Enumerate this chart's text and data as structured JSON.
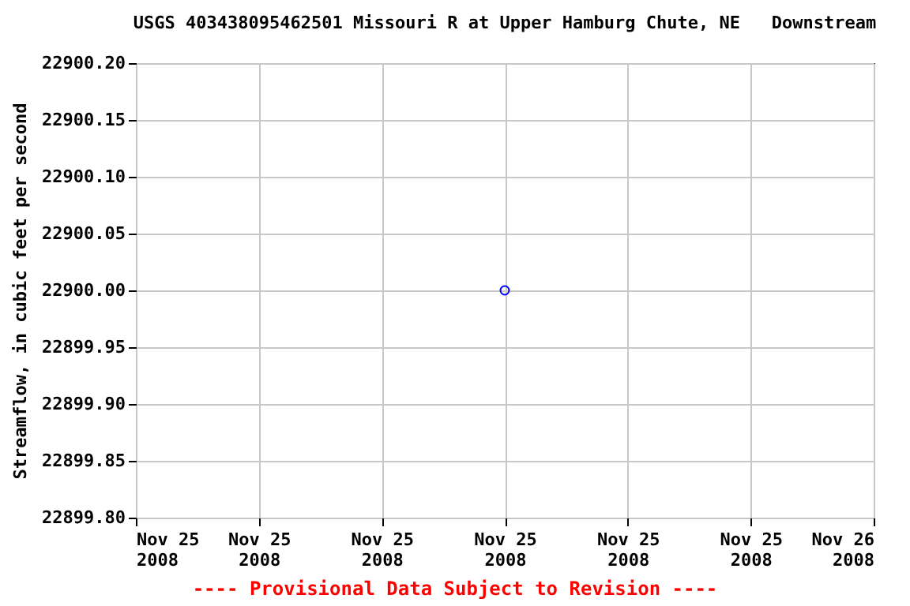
{
  "chart_data": {
    "type": "scatter",
    "title": "USGS 403438095462501 Missouri R at Upper Hamburg Chute, NE   Downstream",
    "ylabel": "Streamflow, in cubic feet per second",
    "x": [
      "2008-11-25T12:00"
    ],
    "series": [
      {
        "color": "#0000ff",
        "values": [
          22900.0
        ]
      }
    ],
    "marker": "circle",
    "grid": true,
    "xlim": [
      "2008-11-25T00:00",
      "2008-11-26T00:00"
    ],
    "xticks": [
      {
        "value": "2008-11-25T00:00",
        "label": "Nov 25\n2008"
      },
      {
        "value": "2008-11-25T04:00",
        "label": "Nov 25\n2008"
      },
      {
        "value": "2008-11-25T08:00",
        "label": "Nov 25\n2008"
      },
      {
        "value": "2008-11-25T12:00",
        "label": "Nov 25\n2008"
      },
      {
        "value": "2008-11-25T16:00",
        "label": "Nov 25\n2008"
      },
      {
        "value": "2008-11-25T20:00",
        "label": "Nov 25\n2008"
      },
      {
        "value": "2008-11-26T00:00",
        "label": "Nov 26\n2008"
      }
    ],
    "ylim": [
      22899.8,
      22900.2
    ],
    "yticks": [
      {
        "value": 22899.8,
        "label": "22899.80"
      },
      {
        "value": 22899.85,
        "label": "22899.85"
      },
      {
        "value": 22899.9,
        "label": "22899.90"
      },
      {
        "value": 22899.95,
        "label": "22899.95"
      },
      {
        "value": 22900.0,
        "label": "22900.00"
      },
      {
        "value": 22900.05,
        "label": "22900.05"
      },
      {
        "value": 22900.1,
        "label": "22900.10"
      },
      {
        "value": 22900.15,
        "label": "22900.15"
      },
      {
        "value": 22900.2,
        "label": "22900.20"
      }
    ],
    "annotations": [
      "---- Provisional Data Subject to Revision ----"
    ]
  }
}
